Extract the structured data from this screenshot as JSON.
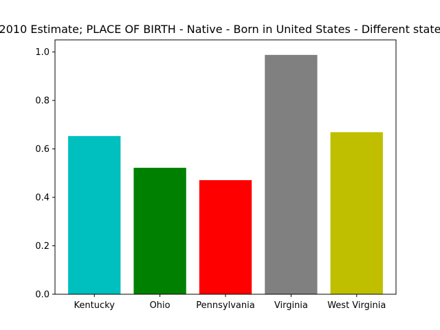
{
  "chart_data": {
    "type": "bar",
    "title": "2010 Estimate; PLACE OF BIRTH - Native - Born in United States - Different state",
    "xlabel": "",
    "ylabel": "",
    "categories": [
      "Kentucky",
      "Ohio",
      "Pennsylvania",
      "Virginia",
      "West Virginia"
    ],
    "values": [
      0.653,
      0.522,
      0.471,
      0.988,
      0.669
    ],
    "colors": [
      "#00bfbf",
      "#008000",
      "#ff0000",
      "#808080",
      "#bfbf00"
    ],
    "ylim": [
      0,
      1.05
    ],
    "yticks": [
      "0.0",
      "0.2",
      "0.4",
      "0.6",
      "0.8",
      "1.0"
    ],
    "grid": false,
    "legend": "none"
  }
}
